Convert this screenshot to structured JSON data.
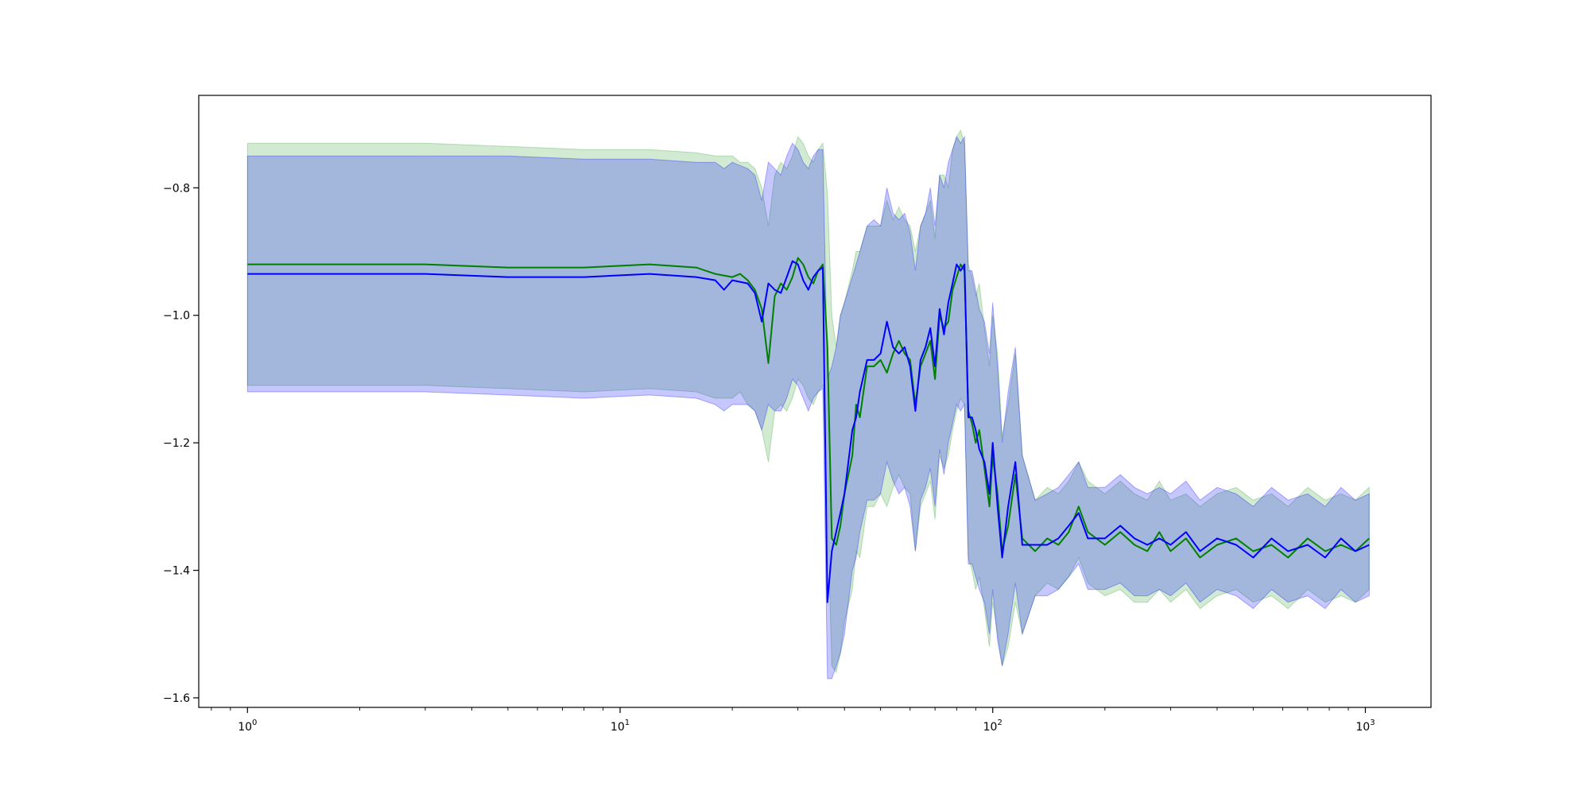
{
  "chart_data": {
    "type": "line",
    "title": "",
    "xlabel": "",
    "ylabel": "",
    "xscale": "log",
    "xlim": [
      0.74,
      1500
    ],
    "ylim": [
      -1.615,
      -0.655
    ],
    "grid": false,
    "legend": "none",
    "x_ticks": [
      {
        "value": 1,
        "base": "10",
        "exp": "0"
      },
      {
        "value": 10,
        "base": "10",
        "exp": "1"
      },
      {
        "value": 100,
        "base": "10",
        "exp": "2"
      },
      {
        "value": 1000,
        "base": "10",
        "exp": "3"
      }
    ],
    "y_ticks": [
      {
        "value": -0.8,
        "label": "−0.8"
      },
      {
        "value": -1.0,
        "label": "−1.0"
      },
      {
        "value": -1.2,
        "label": "−1.2"
      },
      {
        "value": -1.4,
        "label": "−1.4"
      },
      {
        "value": -1.6,
        "label": "−1.6"
      }
    ],
    "series": [
      {
        "color": "#008000",
        "band_color": "#2ca02c",
        "points": [
          [
            1,
            -0.92,
            -1.11,
            -0.73
          ],
          [
            3,
            -0.92,
            -1.11,
            -0.73
          ],
          [
            5,
            -0.925,
            -1.115,
            -0.735
          ],
          [
            8,
            -0.925,
            -1.12,
            -0.74
          ],
          [
            12,
            -0.92,
            -1.115,
            -0.74
          ],
          [
            16,
            -0.925,
            -1.12,
            -0.745
          ],
          [
            18,
            -0.935,
            -1.13,
            -0.75
          ],
          [
            20,
            -0.94,
            -1.13,
            -0.75
          ],
          [
            21,
            -0.935,
            -1.12,
            -0.76
          ],
          [
            22,
            -0.945,
            -1.14,
            -0.76
          ],
          [
            23,
            -0.96,
            -1.15,
            -0.77
          ],
          [
            24,
            -0.99,
            -1.18,
            -0.8
          ],
          [
            25,
            -1.075,
            -1.23,
            -0.86
          ],
          [
            26,
            -0.97,
            -1.15,
            -0.78
          ],
          [
            27,
            -0.95,
            -1.14,
            -0.76
          ],
          [
            28,
            -0.96,
            -1.15,
            -0.77
          ],
          [
            29,
            -0.94,
            -1.13,
            -0.75
          ],
          [
            30,
            -0.91,
            -1.1,
            -0.72
          ],
          [
            31,
            -0.92,
            -1.11,
            -0.73
          ],
          [
            32,
            -0.94,
            -1.13,
            -0.75
          ],
          [
            33,
            -0.95,
            -1.14,
            -0.76
          ],
          [
            34,
            -0.93,
            -1.12,
            -0.74
          ],
          [
            35,
            -0.92,
            -1.11,
            -0.73
          ],
          [
            36,
            -1.05,
            -1.3,
            -0.81
          ],
          [
            37,
            -1.35,
            -1.55,
            -1.0
          ],
          [
            38,
            -1.36,
            -1.56,
            -1.05
          ],
          [
            39,
            -1.33,
            -1.53,
            -1.0
          ],
          [
            40,
            -1.28,
            -1.48,
            -0.98
          ],
          [
            42,
            -1.22,
            -1.43,
            -0.93
          ],
          [
            43,
            -1.14,
            -1.37,
            -0.9
          ],
          [
            44,
            -1.16,
            -1.38,
            -0.9
          ],
          [
            46,
            -1.08,
            -1.3,
            -0.86
          ],
          [
            48,
            -1.08,
            -1.3,
            -0.86
          ],
          [
            50,
            -1.07,
            -1.28,
            -0.86
          ],
          [
            52,
            -1.09,
            -1.3,
            -0.82
          ],
          [
            54,
            -1.06,
            -1.27,
            -0.85
          ],
          [
            56,
            -1.04,
            -1.25,
            -0.83
          ],
          [
            58,
            -1.06,
            -1.27,
            -0.85
          ],
          [
            60,
            -1.07,
            -1.28,
            -0.86
          ],
          [
            62,
            -1.14,
            -1.37,
            -0.9
          ],
          [
            64,
            -1.08,
            -1.3,
            -0.86
          ],
          [
            66,
            -1.06,
            -1.28,
            -0.84
          ],
          [
            68,
            -1.04,
            -1.26,
            -0.82
          ],
          [
            70,
            -1.1,
            -1.32,
            -0.88
          ],
          [
            72,
            -1.0,
            -1.22,
            -0.78
          ],
          [
            74,
            -1.02,
            -1.24,
            -0.78
          ],
          [
            76,
            -1.01,
            -1.22,
            -0.8
          ],
          [
            78,
            -0.96,
            -1.18,
            -0.74
          ],
          [
            80,
            -0.94,
            -1.15,
            -0.72
          ],
          [
            82,
            -0.92,
            -1.13,
            -0.71
          ],
          [
            84,
            -0.93,
            -1.14,
            -0.73
          ],
          [
            86,
            -1.15,
            -1.38,
            -0.92
          ],
          [
            88,
            -1.17,
            -1.4,
            -0.94
          ],
          [
            90,
            -1.2,
            -1.43,
            -0.97
          ],
          [
            92,
            -1.18,
            -1.41,
            -0.95
          ],
          [
            95,
            -1.24,
            -1.46,
            -1.02
          ],
          [
            98,
            -1.3,
            -1.52,
            -1.08
          ],
          [
            100,
            -1.22,
            -1.45,
            -1.0
          ],
          [
            103,
            -1.28,
            -1.5,
            -1.06
          ],
          [
            106,
            -1.37,
            -1.55,
            -1.19
          ],
          [
            110,
            -1.33,
            -1.52,
            -1.14
          ],
          [
            115,
            -1.25,
            -1.45,
            -1.06
          ],
          [
            120,
            -1.35,
            -1.5,
            -1.22
          ],
          [
            130,
            -1.37,
            -1.44,
            -1.29
          ],
          [
            140,
            -1.35,
            -1.42,
            -1.27
          ],
          [
            150,
            -1.36,
            -1.43,
            -1.28
          ],
          [
            160,
            -1.34,
            -1.41,
            -1.26
          ],
          [
            170,
            -1.3,
            -1.38,
            -1.23
          ],
          [
            180,
            -1.34,
            -1.42,
            -1.26
          ],
          [
            200,
            -1.36,
            -1.44,
            -1.28
          ],
          [
            220,
            -1.34,
            -1.43,
            -1.26
          ],
          [
            240,
            -1.36,
            -1.45,
            -1.28
          ],
          [
            260,
            -1.37,
            -1.45,
            -1.29
          ],
          [
            280,
            -1.34,
            -1.43,
            -1.26
          ],
          [
            300,
            -1.37,
            -1.45,
            -1.29
          ],
          [
            330,
            -1.35,
            -1.43,
            -1.28
          ],
          [
            360,
            -1.38,
            -1.46,
            -1.3
          ],
          [
            400,
            -1.36,
            -1.44,
            -1.28
          ],
          [
            450,
            -1.35,
            -1.43,
            -1.27
          ],
          [
            500,
            -1.37,
            -1.45,
            -1.29
          ],
          [
            560,
            -1.36,
            -1.44,
            -1.28
          ],
          [
            620,
            -1.38,
            -1.46,
            -1.3
          ],
          [
            700,
            -1.35,
            -1.43,
            -1.27
          ],
          [
            780,
            -1.37,
            -1.45,
            -1.29
          ],
          [
            860,
            -1.36,
            -1.44,
            -1.28
          ],
          [
            940,
            -1.37,
            -1.45,
            -1.29
          ],
          [
            1024,
            -1.35,
            -1.43,
            -1.27
          ]
        ]
      },
      {
        "color": "#0000ff",
        "band_color": "#0000ff",
        "points": [
          [
            1,
            -0.935,
            -1.12,
            -0.75
          ],
          [
            3,
            -0.935,
            -1.12,
            -0.75
          ],
          [
            5,
            -0.94,
            -1.125,
            -0.75
          ],
          [
            8,
            -0.94,
            -1.13,
            -0.755
          ],
          [
            12,
            -0.935,
            -1.125,
            -0.755
          ],
          [
            16,
            -0.94,
            -1.13,
            -0.76
          ],
          [
            18,
            -0.945,
            -1.14,
            -0.76
          ],
          [
            19,
            -0.96,
            -1.15,
            -0.77
          ],
          [
            20,
            -0.945,
            -1.14,
            -0.76
          ],
          [
            22,
            -0.95,
            -1.14,
            -0.77
          ],
          [
            23,
            -0.965,
            -1.15,
            -0.78
          ],
          [
            24,
            -1.01,
            -1.18,
            -0.82
          ],
          [
            25,
            -0.95,
            -1.14,
            -0.76
          ],
          [
            26,
            -0.96,
            -1.15,
            -0.77
          ],
          [
            27,
            -0.965,
            -1.15,
            -0.78
          ],
          [
            28,
            -0.94,
            -1.13,
            -0.75
          ],
          [
            29,
            -0.915,
            -1.1,
            -0.73
          ],
          [
            30,
            -0.92,
            -1.11,
            -0.74
          ],
          [
            31,
            -0.945,
            -1.13,
            -0.76
          ],
          [
            32,
            -0.96,
            -1.15,
            -0.77
          ],
          [
            33,
            -0.94,
            -1.13,
            -0.75
          ],
          [
            34,
            -0.93,
            -1.12,
            -0.74
          ],
          [
            35,
            -0.925,
            -1.115,
            -0.74
          ],
          [
            36,
            -1.45,
            -1.57,
            -1.1
          ],
          [
            37,
            -1.37,
            -1.57,
            -1.08
          ],
          [
            38,
            -1.34,
            -1.55,
            -1.05
          ],
          [
            39,
            -1.31,
            -1.53,
            -1.0
          ],
          [
            40,
            -1.28,
            -1.5,
            -0.98
          ],
          [
            42,
            -1.18,
            -1.4,
            -0.94
          ],
          [
            43,
            -1.16,
            -1.38,
            -0.92
          ],
          [
            44,
            -1.12,
            -1.34,
            -0.9
          ],
          [
            46,
            -1.07,
            -1.29,
            -0.86
          ],
          [
            48,
            -1.07,
            -1.29,
            -0.85
          ],
          [
            50,
            -1.06,
            -1.28,
            -0.86
          ],
          [
            52,
            -1.01,
            -1.23,
            -0.8
          ],
          [
            54,
            -1.05,
            -1.26,
            -0.84
          ],
          [
            56,
            -1.06,
            -1.28,
            -0.85
          ],
          [
            58,
            -1.05,
            -1.27,
            -0.84
          ],
          [
            60,
            -1.08,
            -1.3,
            -0.87
          ],
          [
            62,
            -1.15,
            -1.37,
            -0.93
          ],
          [
            64,
            -1.07,
            -1.29,
            -0.86
          ],
          [
            66,
            -1.05,
            -1.27,
            -0.84
          ],
          [
            68,
            -1.02,
            -1.24,
            -0.8
          ],
          [
            70,
            -1.08,
            -1.3,
            -0.86
          ],
          [
            72,
            -0.99,
            -1.21,
            -0.78
          ],
          [
            74,
            -1.03,
            -1.25,
            -0.8
          ],
          [
            76,
            -0.98,
            -1.2,
            -0.76
          ],
          [
            78,
            -0.95,
            -1.17,
            -0.74
          ],
          [
            80,
            -0.92,
            -1.14,
            -0.72
          ],
          [
            82,
            -0.93,
            -1.15,
            -0.73
          ],
          [
            84,
            -0.92,
            -1.14,
            -0.72
          ],
          [
            86,
            -1.16,
            -1.39,
            -0.93
          ],
          [
            88,
            -1.16,
            -1.39,
            -0.93
          ],
          [
            90,
            -1.18,
            -1.41,
            -0.96
          ],
          [
            92,
            -1.21,
            -1.43,
            -0.99
          ],
          [
            95,
            -1.23,
            -1.45,
            -1.01
          ],
          [
            98,
            -1.28,
            -1.5,
            -1.06
          ],
          [
            100,
            -1.2,
            -1.43,
            -0.98
          ],
          [
            103,
            -1.3,
            -1.51,
            -1.08
          ],
          [
            106,
            -1.38,
            -1.55,
            -1.2
          ],
          [
            110,
            -1.3,
            -1.5,
            -1.12
          ],
          [
            115,
            -1.23,
            -1.42,
            -1.05
          ],
          [
            120,
            -1.36,
            -1.5,
            -1.22
          ],
          [
            130,
            -1.36,
            -1.44,
            -1.29
          ],
          [
            140,
            -1.36,
            -1.44,
            -1.28
          ],
          [
            150,
            -1.35,
            -1.43,
            -1.27
          ],
          [
            160,
            -1.33,
            -1.41,
            -1.25
          ],
          [
            170,
            -1.31,
            -1.39,
            -1.23
          ],
          [
            180,
            -1.35,
            -1.43,
            -1.27
          ],
          [
            200,
            -1.35,
            -1.43,
            -1.27
          ],
          [
            220,
            -1.33,
            -1.42,
            -1.25
          ],
          [
            240,
            -1.35,
            -1.44,
            -1.27
          ],
          [
            260,
            -1.36,
            -1.44,
            -1.28
          ],
          [
            280,
            -1.35,
            -1.43,
            -1.27
          ],
          [
            300,
            -1.36,
            -1.44,
            -1.28
          ],
          [
            330,
            -1.34,
            -1.42,
            -1.26
          ],
          [
            360,
            -1.37,
            -1.45,
            -1.29
          ],
          [
            400,
            -1.35,
            -1.43,
            -1.27
          ],
          [
            450,
            -1.36,
            -1.44,
            -1.28
          ],
          [
            500,
            -1.38,
            -1.46,
            -1.3
          ],
          [
            560,
            -1.35,
            -1.43,
            -1.27
          ],
          [
            620,
            -1.37,
            -1.45,
            -1.29
          ],
          [
            700,
            -1.36,
            -1.44,
            -1.28
          ],
          [
            780,
            -1.38,
            -1.46,
            -1.3
          ],
          [
            860,
            -1.35,
            -1.43,
            -1.27
          ],
          [
            940,
            -1.37,
            -1.45,
            -1.29
          ],
          [
            1024,
            -1.36,
            -1.44,
            -1.28
          ]
        ]
      }
    ]
  }
}
